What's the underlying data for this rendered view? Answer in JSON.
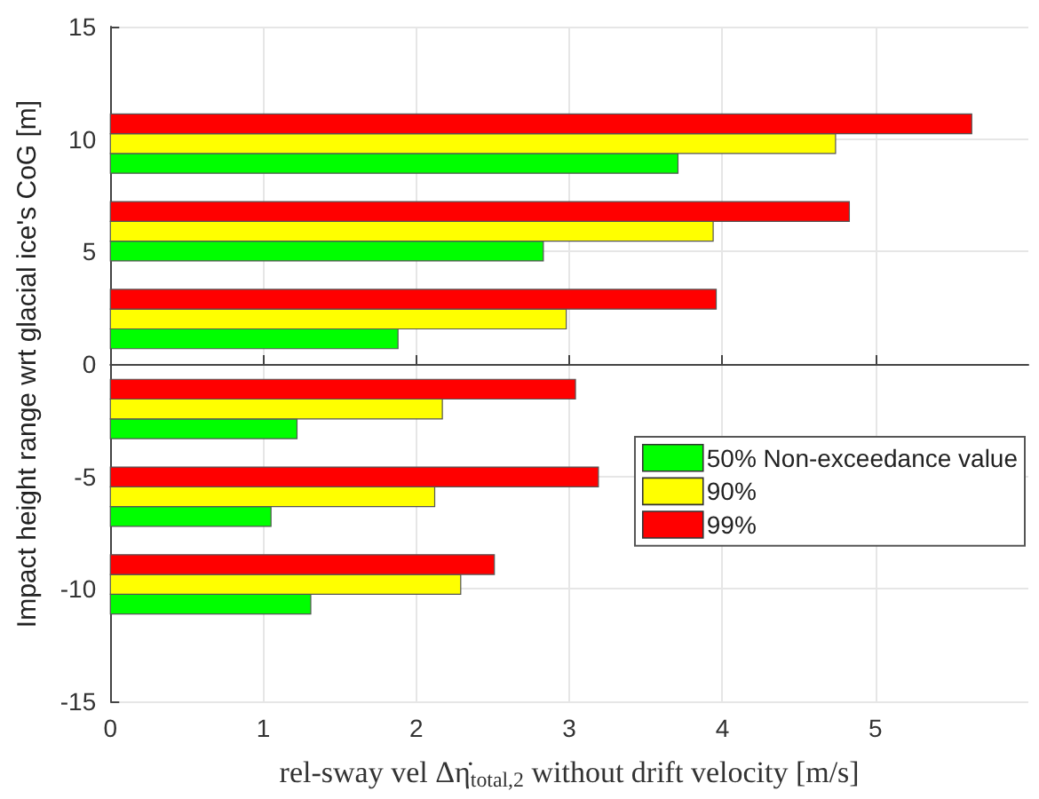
{
  "chart_data": {
    "type": "bar",
    "orientation": "horizontal",
    "xlabel": "rel-sway vel Δη̇$_{total,2}$ without drift velocity [m/s]",
    "ylabel": "Impact height range wrt glacial ice's CoG [m]",
    "x": [
      9.8,
      5.9,
      2.0,
      -2.0,
      -5.9,
      -9.8
    ],
    "series": [
      {
        "name": "50% Non-exceedance value",
        "color": "#00ff00",
        "values": [
          3.71,
          2.83,
          1.88,
          1.22,
          1.05,
          1.31
        ]
      },
      {
        "name": "90%",
        "color": "#ffff00",
        "values": [
          4.74,
          3.94,
          2.98,
          2.17,
          2.12,
          2.29
        ]
      },
      {
        "name": "99%",
        "color": "#ff0000",
        "values": [
          5.63,
          4.83,
          3.96,
          3.04,
          3.19,
          2.51
        ]
      }
    ],
    "xlim": [
      0,
      6
    ],
    "xticks": [
      0,
      1,
      2,
      3,
      4,
      5
    ],
    "ylim": [
      -15,
      15
    ],
    "yticks": [
      -15,
      -10,
      -5,
      0,
      5,
      10,
      15
    ],
    "grid": true,
    "legend": "bottom right"
  }
}
